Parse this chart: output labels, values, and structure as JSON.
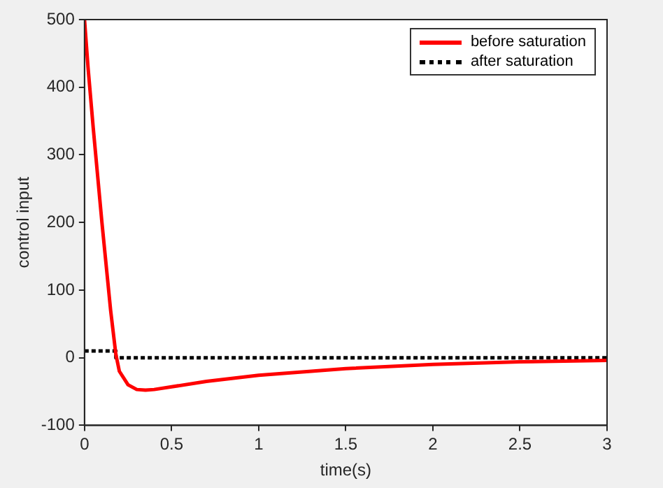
{
  "chart_data": {
    "type": "line",
    "xlabel": "time(s)",
    "ylabel": "control input",
    "xlim": [
      0,
      3
    ],
    "ylim": [
      -100,
      500
    ],
    "xticks": [
      0,
      0.5,
      1,
      1.5,
      2,
      2.5,
      3
    ],
    "yticks": [
      -100,
      0,
      100,
      200,
      300,
      400,
      500
    ],
    "grid": false,
    "legend": "top right",
    "marker": "none",
    "series": [
      {
        "name": "before saturation",
        "color": "#ff0000",
        "line_style": "solid",
        "x": [
          0,
          0.02,
          0.05,
          0.1,
          0.15,
          0.18,
          0.2,
          0.25,
          0.3,
          0.35,
          0.4,
          0.5,
          0.7,
          1,
          1.5,
          2,
          2.5,
          3
        ],
        "values": [
          500,
          430,
          340,
          200,
          70,
          5,
          -20,
          -40,
          -47,
          -48,
          -47,
          -43,
          -35,
          -26,
          -16,
          -10,
          -6,
          -4
        ]
      },
      {
        "name": "after saturation",
        "color": "#000000",
        "line_style": "dotted",
        "x": [
          0,
          0.18,
          0.18,
          3
        ],
        "values": [
          10,
          10,
          0,
          0
        ]
      }
    ]
  }
}
